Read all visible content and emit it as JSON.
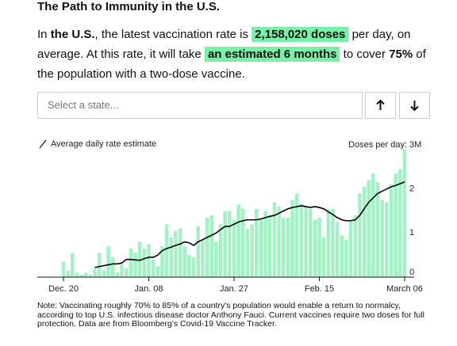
{
  "header": {
    "title": "The Path to Immunity in the U.S."
  },
  "summary": [
    "In",
    "the U.S.",
    ", the latest vaccination rate is",
    "2,158,020 doses",
    "per day, on average. At this rate, it will take",
    "an estimated 6 months",
    "to cover",
    "75%",
    "of the population with a two-dose vaccine."
  ],
  "selector": {
    "placeholder": "Select a state..."
  },
  "chart_data": {
    "type": "bar",
    "y_label": "Doses per day:",
    "categories": [
      "Dec. 20",
      null,
      null,
      null,
      null,
      null,
      null,
      null,
      null,
      null,
      null,
      null,
      null,
      null,
      null,
      null,
      null,
      null,
      null,
      "Jan. 08",
      null,
      null,
      null,
      null,
      null,
      null,
      null,
      null,
      null,
      null,
      null,
      null,
      null,
      null,
      null,
      null,
      null,
      null,
      "Jan. 27",
      null,
      null,
      null,
      null,
      null,
      null,
      null,
      null,
      null,
      null,
      null,
      null,
      null,
      null,
      null,
      null,
      null,
      null,
      "Feb. 15",
      null,
      null,
      null,
      null,
      null,
      null,
      null,
      null,
      null,
      null,
      null,
      null,
      null,
      null,
      null,
      null,
      null,
      null,
      "March 06"
    ],
    "bars": {
      "color": "#a3f2c6",
      "values": [
        0.35,
        0.15,
        0.55,
        0.1,
        0.05,
        0.1,
        0.05,
        0.2,
        0.55,
        0.15,
        0.7,
        0.45,
        0.1,
        0.3,
        0.2,
        0.65,
        0.55,
        0.8,
        0.65,
        0.75,
        0.4,
        0.25,
        0.7,
        1.2,
        0.9,
        1.05,
        1.1,
        0.7,
        0.5,
        0.45,
        1.15,
        0.85,
        1.35,
        1.4,
        0.8,
        1.2,
        1.5,
        1.5,
        1.3,
        1.65,
        1.55,
        1.1,
        1.2,
        1.55,
        1.3,
        1.5,
        1.4,
        1.7,
        1.6,
        1.35,
        1.35,
        1.75,
        1.9,
        1.65,
        1.6,
        1.55,
        1.3,
        1.35,
        0.9,
        1.55,
        1.55,
        1.25,
        0.95,
        0.85,
        1.3,
        1.4,
        1.9,
        2.05,
        2.2,
        2.35,
        2.15,
        1.75,
        1.7,
        2.1,
        2.35,
        2.45,
        2.9
      ]
    },
    "series": [
      {
        "name": "Average daily rate estimate",
        "color": "#000000",
        "values": [
          null,
          null,
          null,
          null,
          null,
          null,
          null,
          0.22,
          0.24,
          0.26,
          0.28,
          0.3,
          0.3,
          0.32,
          0.4,
          0.4,
          0.39,
          0.38,
          0.42,
          0.45,
          0.45,
          0.5,
          0.6,
          0.65,
          0.68,
          0.72,
          0.75,
          0.8,
          0.78,
          0.72,
          0.8,
          0.85,
          0.9,
          0.95,
          1.0,
          1.08,
          1.15,
          1.15,
          1.2,
          1.25,
          1.28,
          1.3,
          1.3,
          1.3,
          1.32,
          1.35,
          1.38,
          1.4,
          1.45,
          1.5,
          1.55,
          1.58,
          1.6,
          1.62,
          1.6,
          1.58,
          1.6,
          1.58,
          1.55,
          1.48,
          1.42,
          1.35,
          1.3,
          1.28,
          1.28,
          1.3,
          1.4,
          1.55,
          1.7,
          1.8,
          1.9,
          1.95,
          2.0,
          2.05,
          2.08,
          2.12,
          2.16
        ]
      }
    ],
    "ylim": [
      0,
      3
    ],
    "yticks": [
      0,
      1,
      2,
      {
        "value": 3,
        "label": "3M"
      }
    ],
    "note": "Note: Vaccinating roughly 70% to 85% of a country's population would enable a return to normalcy, according to top U.S. infectious disease doctor Anthony Fauci. Current vaccines require two doses for full protection. Data are from Bloomberg's Covid-19 Vaccine Tracker."
  }
}
